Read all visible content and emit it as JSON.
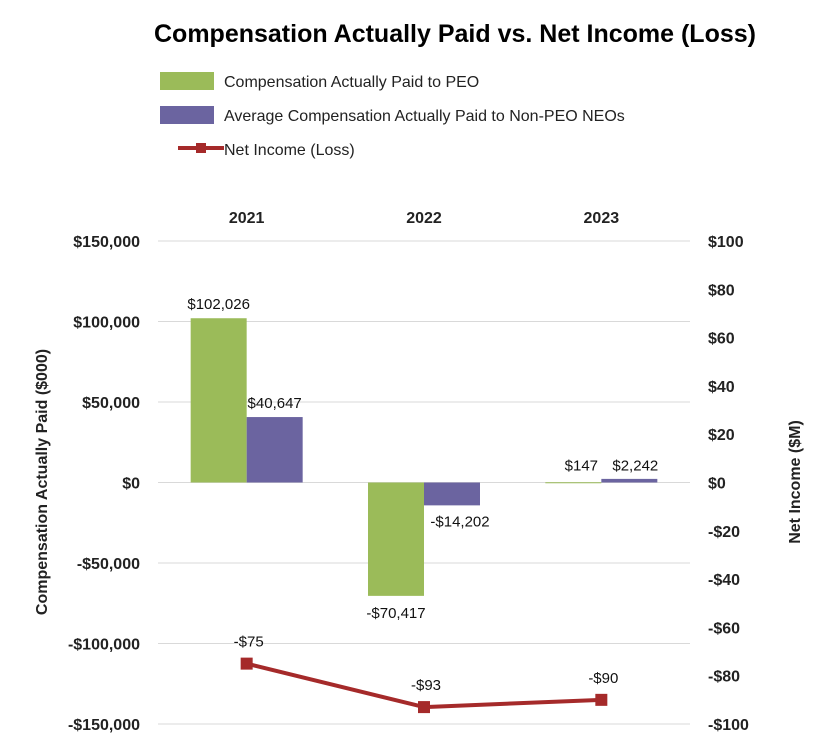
{
  "chart_data": {
    "type": "bar",
    "title": "Compensation Actually Paid vs. Net Income (Loss)",
    "categories": [
      "2021",
      "2022",
      "2023"
    ],
    "series": [
      {
        "name": "Compensation Actually Paid to PEO",
        "type": "bar",
        "axis": "left",
        "color": "#9BBB59",
        "values": [
          102026,
          -70417,
          147
        ],
        "labels": [
          "$102,026",
          "-$70,417",
          "$147"
        ]
      },
      {
        "name": "Average Compensation Actually Paid to Non-PEO NEOs",
        "type": "bar",
        "axis": "left",
        "color": "#6B64A0",
        "values": [
          40647,
          -14202,
          2242
        ],
        "labels": [
          "$40,647",
          "-$14,202",
          "$2,242"
        ]
      },
      {
        "name": "Net Income (Loss)",
        "type": "line",
        "axis": "right",
        "color": "#A52A2A",
        "values": [
          -75,
          -93,
          -90
        ],
        "labels": [
          "-$75",
          "-$93",
          "-$90"
        ]
      }
    ],
    "ylabel": "Compensation  Actually Paid ($000)",
    "ylabel_right": "Net Income ($M)",
    "ylim": [
      -150000,
      150000
    ],
    "ylim_right": [
      -100,
      100
    ],
    "yticks": [
      150000,
      100000,
      50000,
      0,
      -50000,
      -100000,
      -150000
    ],
    "ytick_labels": [
      "$150,000",
      "$100,000",
      "$50,000",
      "$0",
      "-$50,000",
      "-$100,000",
      "-$150,000"
    ],
    "yticks_right": [
      100,
      80,
      60,
      40,
      20,
      0,
      -20,
      -40,
      -60,
      -80,
      -100
    ],
    "ytick_labels_right": [
      "$100",
      "$80",
      "$60",
      "$40",
      "$20",
      "$0",
      "-$20",
      "-$40",
      "-$60",
      "-$80",
      "-$100"
    ],
    "grid": true,
    "legend_position": "top"
  }
}
